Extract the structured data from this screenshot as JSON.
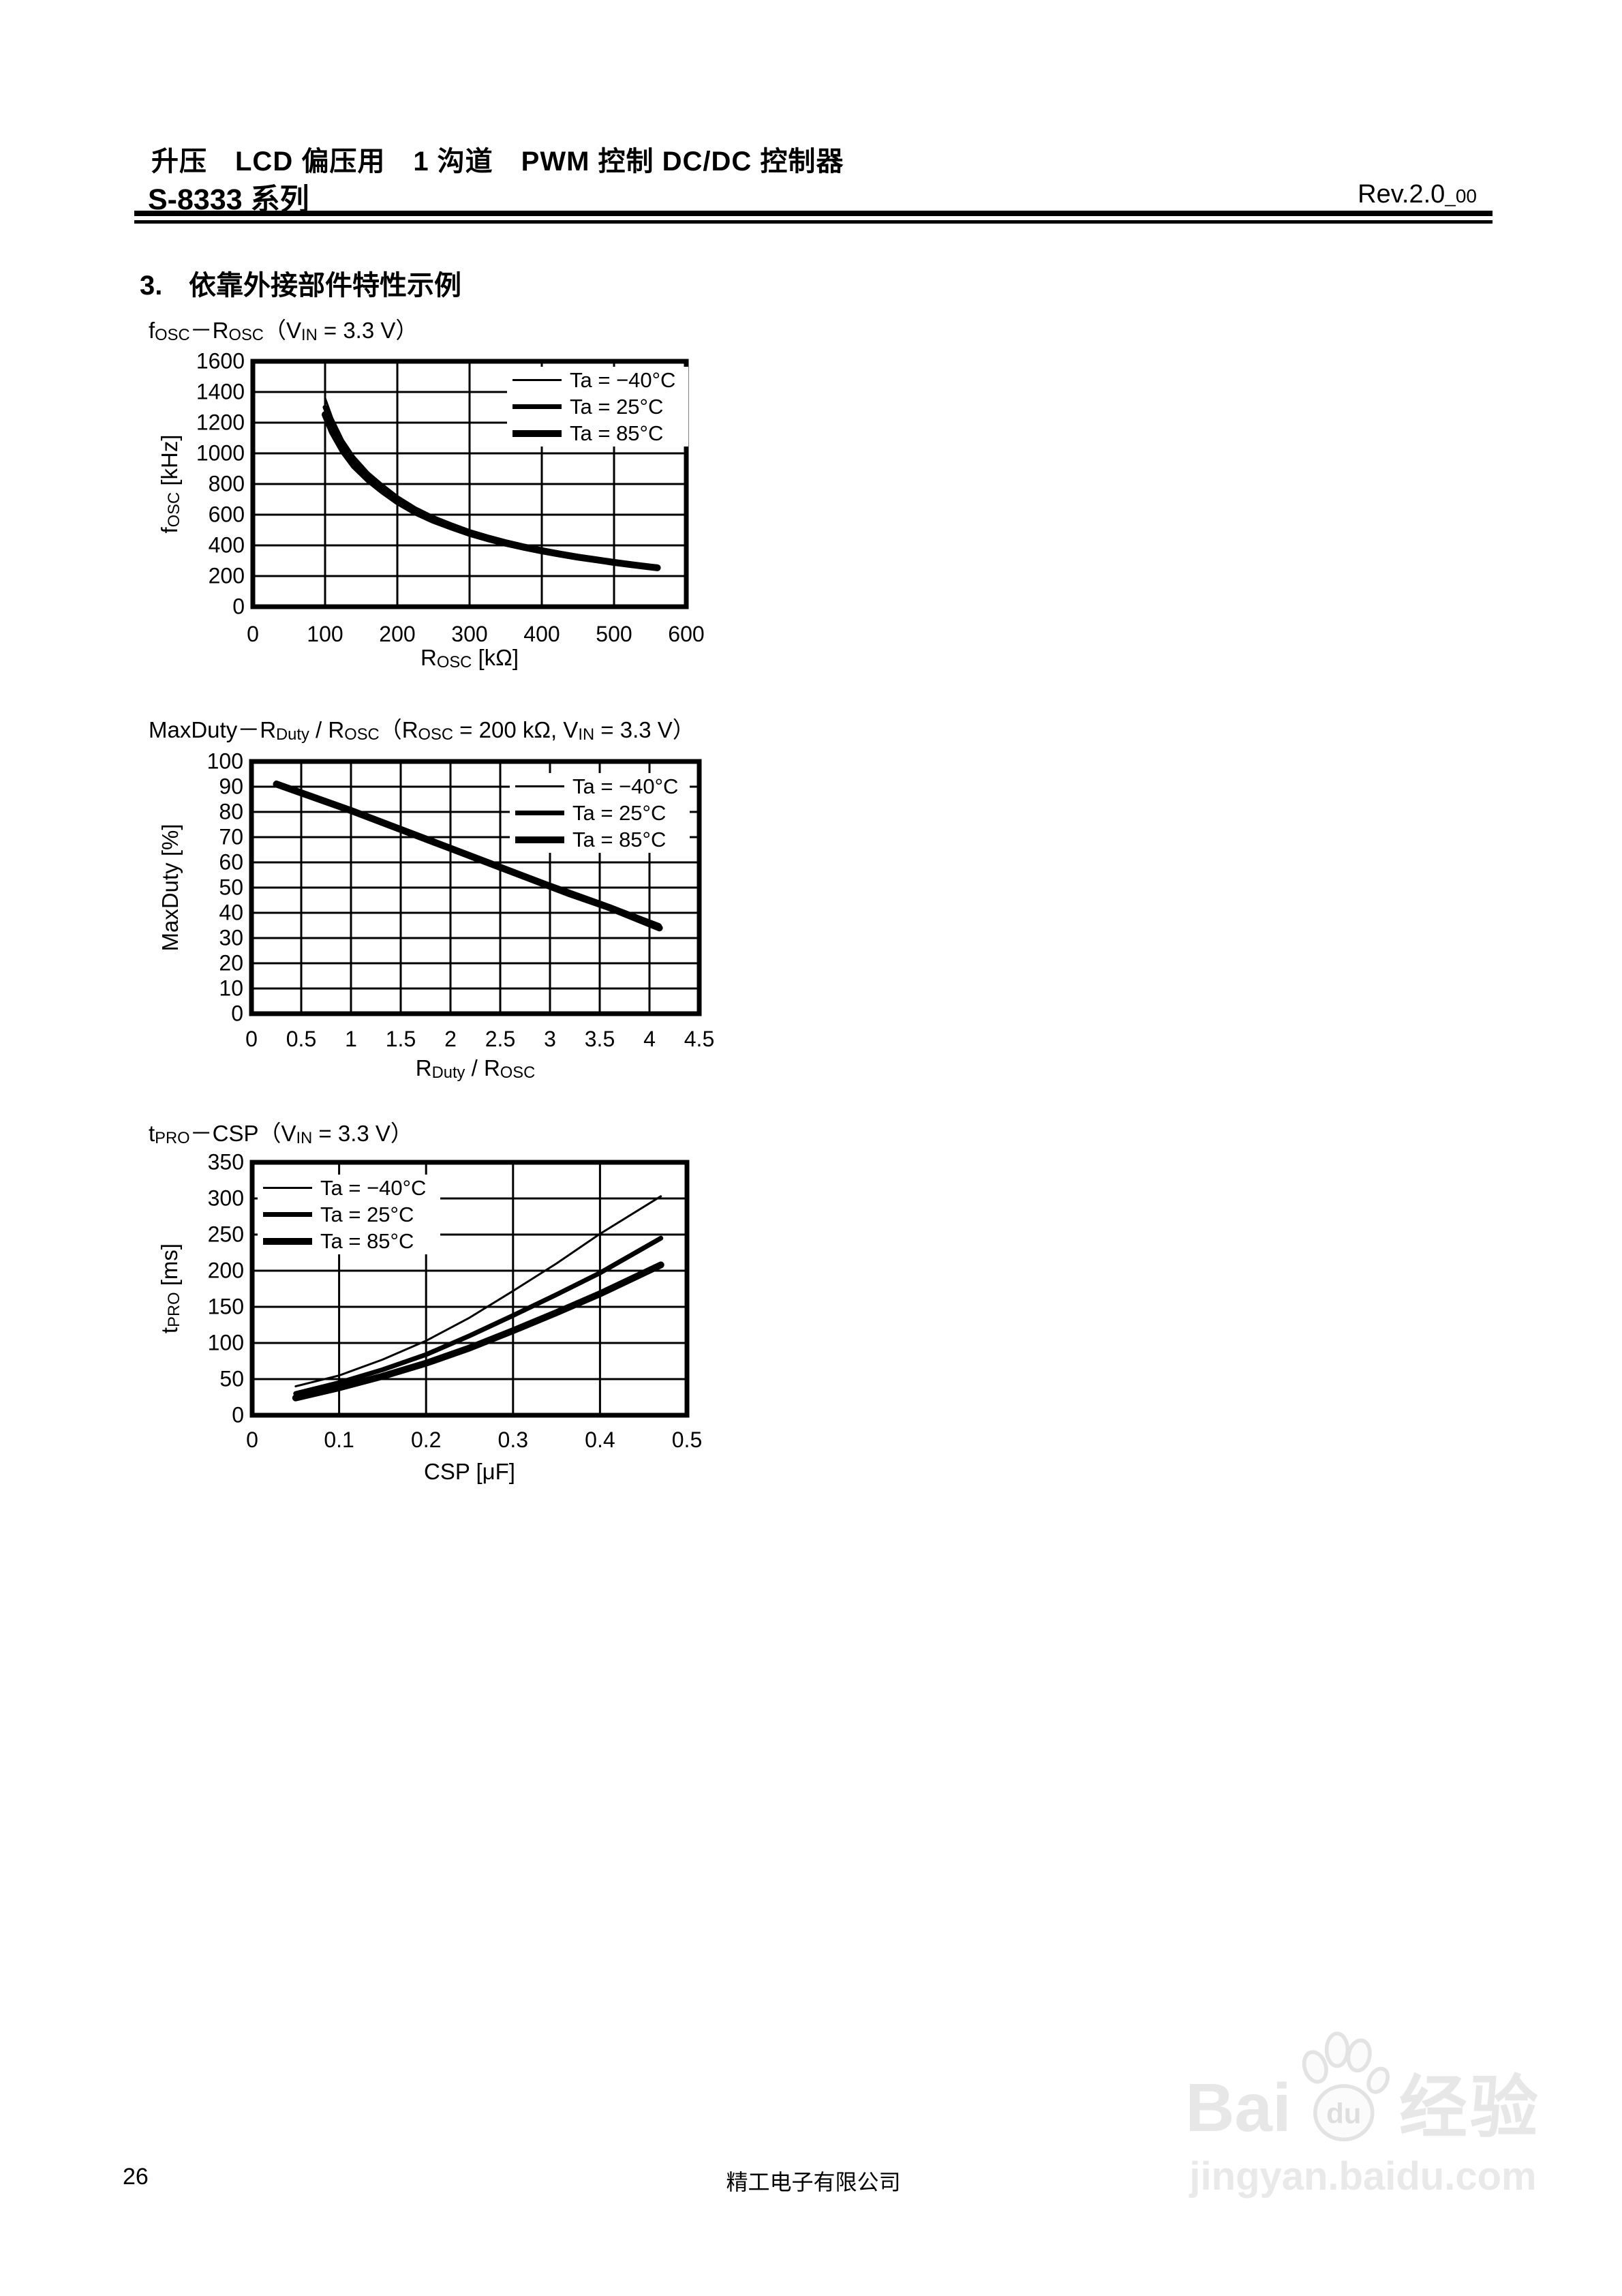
{
  "page": {
    "header": {
      "title_line": "升压　LCD 偏压用　1 沟道　PWM 控制 DC/DC 控制器",
      "series_name": "S-8333 系列",
      "revision": "Rev.2.0",
      "revision_sub": "_00"
    },
    "section": {
      "number": "3.",
      "title": "依靠外接部件特性示例"
    },
    "footer": {
      "page_number": "26",
      "company": "精工电子有限公司"
    },
    "watermark": {
      "bai": "Bai",
      "du": "du",
      "cn": "经验",
      "url": "jingyan.baidu.com",
      "color": "#e7e7e7"
    },
    "ink_color": "#000000"
  },
  "chart_data": [
    {
      "type": "line",
      "title": [
        {
          "t": "f"
        },
        {
          "t": "OSC",
          "sub": true
        },
        {
          "t": "－R"
        },
        {
          "t": "OSC",
          "sub": true
        },
        {
          "t": "（V"
        },
        {
          "t": "IN",
          "sub": true
        },
        {
          "t": " = 3.3 V）"
        }
      ],
      "ylabel": [
        {
          "t": "f"
        },
        {
          "t": "OSC",
          "sub": true
        },
        {
          "t": " [kHz]"
        }
      ],
      "xlabel": [
        {
          "t": "R"
        },
        {
          "t": "OSC",
          "sub": true
        },
        {
          "t": " [kΩ]"
        }
      ],
      "x_range": [
        0,
        600
      ],
      "y_range": [
        0,
        1600
      ],
      "x_ticks": [
        "0",
        "100",
        "200",
        "300",
        "400",
        "500",
        "600"
      ],
      "y_ticks": [
        "0",
        "200",
        "400",
        "600",
        "800",
        "1000",
        "1200",
        "1400",
        "1600"
      ],
      "grid": true,
      "legend_position": "top-right",
      "series": [
        {
          "name": "Ta = −40°C",
          "line_width": 3,
          "points": [
            [
              100,
              1360
            ],
            [
              110,
              1230
            ],
            [
              125,
              1085
            ],
            [
              140,
              980
            ],
            [
              160,
              875
            ],
            [
              180,
              795
            ],
            [
              200,
              722
            ],
            [
              225,
              648
            ],
            [
              250,
              590
            ],
            [
              275,
              543
            ],
            [
              300,
              500
            ],
            [
              325,
              465
            ],
            [
              350,
              433
            ],
            [
              375,
              405
            ],
            [
              400,
              380
            ],
            [
              425,
              358
            ],
            [
              450,
              337
            ],
            [
              475,
              318
            ],
            [
              500,
              300
            ],
            [
              525,
              284
            ],
            [
              550,
              269
            ],
            [
              560,
              263
            ]
          ]
        },
        {
          "name": "Ta = 25°C",
          "line_width": 7,
          "points": [
            [
              100,
              1300
            ],
            [
              110,
              1180
            ],
            [
              125,
              1048
            ],
            [
              140,
              948
            ],
            [
              160,
              850
            ],
            [
              180,
              773
            ],
            [
              200,
              703
            ],
            [
              225,
              632
            ],
            [
              250,
              576
            ],
            [
              275,
              530
            ],
            [
              300,
              489
            ],
            [
              325,
              454
            ],
            [
              350,
              423
            ],
            [
              375,
              396
            ],
            [
              400,
              372
            ],
            [
              425,
              350
            ],
            [
              450,
              330
            ],
            [
              475,
              312
            ],
            [
              500,
              294
            ],
            [
              525,
              279
            ],
            [
              550,
              264
            ],
            [
              560,
              258
            ]
          ]
        },
        {
          "name": "Ta = 85°C",
          "line_width": 10,
          "points": [
            [
              100,
              1253
            ],
            [
              110,
              1140
            ],
            [
              125,
              1015
            ],
            [
              140,
              920
            ],
            [
              160,
              828
            ],
            [
              180,
              753
            ],
            [
              200,
              686
            ],
            [
              225,
              617
            ],
            [
              250,
              563
            ],
            [
              275,
              519
            ],
            [
              300,
              478
            ],
            [
              325,
              444
            ],
            [
              350,
              414
            ],
            [
              375,
              388
            ],
            [
              400,
              364
            ],
            [
              425,
              343
            ],
            [
              450,
              323
            ],
            [
              475,
              306
            ],
            [
              500,
              289
            ],
            [
              525,
              274
            ],
            [
              550,
              259
            ],
            [
              560,
              254
            ]
          ]
        }
      ]
    },
    {
      "type": "line",
      "title": [
        {
          "t": "MaxDuty－R"
        },
        {
          "t": "Duty",
          "sub": true
        },
        {
          "t": " / R"
        },
        {
          "t": "OSC",
          "sub": true
        },
        {
          "t": "（R"
        },
        {
          "t": "OSC",
          "sub": true
        },
        {
          "t": " = 200 kΩ, V"
        },
        {
          "t": "IN",
          "sub": true
        },
        {
          "t": " = 3.3 V）"
        }
      ],
      "ylabel": [
        {
          "t": "MaxDuty [%]"
        }
      ],
      "xlabel": [
        {
          "t": "R"
        },
        {
          "t": "Duty",
          "sub": true
        },
        {
          "t": " / R"
        },
        {
          "t": "OSC",
          "sub": true
        }
      ],
      "x_range": [
        0,
        4.5
      ],
      "y_range": [
        0,
        100
      ],
      "x_ticks": [
        "0",
        "0.5",
        "1",
        "1.5",
        "2",
        "2.5",
        "3",
        "3.5",
        "4",
        "4.5"
      ],
      "y_ticks": [
        "0",
        "10",
        "20",
        "30",
        "40",
        "50",
        "60",
        "70",
        "80",
        "90",
        "100"
      ],
      "grid": true,
      "legend_position": "top-right",
      "series": [
        {
          "name": "Ta = −40°C",
          "line_width": 3,
          "points": [
            [
              0.25,
              92
            ],
            [
              1.0,
              81.5
            ],
            [
              2.0,
              66.5
            ],
            [
              3.0,
              51.5
            ],
            [
              3.6,
              43
            ],
            [
              4.1,
              35.5
            ]
          ]
        },
        {
          "name": "Ta = 25°C",
          "line_width": 7,
          "points": [
            [
              0.25,
              91.5
            ],
            [
              1.0,
              81
            ],
            [
              2.0,
              66
            ],
            [
              3.0,
              51
            ],
            [
              3.6,
              42.5
            ],
            [
              4.1,
              34.8
            ]
          ]
        },
        {
          "name": "Ta = 85°C",
          "line_width": 10,
          "points": [
            [
              0.25,
              91
            ],
            [
              1.0,
              80.5
            ],
            [
              2.0,
              65.5
            ],
            [
              3.0,
              50.5
            ],
            [
              3.2,
              47.5
            ],
            [
              3.6,
              42
            ],
            [
              4.1,
              34
            ]
          ]
        }
      ]
    },
    {
      "type": "line",
      "title": [
        {
          "t": "t"
        },
        {
          "t": "PRO",
          "sub": true
        },
        {
          "t": "－CSP（V"
        },
        {
          "t": "IN",
          "sub": true
        },
        {
          "t": " = 3.3 V）"
        }
      ],
      "ylabel": [
        {
          "t": "t"
        },
        {
          "t": "PRO",
          "sub": true
        },
        {
          "t": " [ms]"
        }
      ],
      "xlabel": [
        {
          "t": "CSP [μF]"
        }
      ],
      "x_range": [
        0,
        0.5
      ],
      "y_range": [
        0,
        350
      ],
      "x_ticks": [
        "0",
        "0.1",
        "0.2",
        "0.3",
        "0.4",
        "0.5"
      ],
      "y_ticks": [
        "0",
        "50",
        "100",
        "150",
        "200",
        "250",
        "300",
        "350"
      ],
      "grid": true,
      "legend_position": "top-left",
      "series": [
        {
          "name": "Ta = −40°C",
          "line_width": 3,
          "points": [
            [
              0.05,
              40
            ],
            [
              0.1,
              55
            ],
            [
              0.15,
              77
            ],
            [
              0.2,
              103
            ],
            [
              0.25,
              135
            ],
            [
              0.3,
              172
            ],
            [
              0.35,
              210
            ],
            [
              0.4,
              251
            ],
            [
              0.47,
              303
            ]
          ]
        },
        {
          "name": "Ta = 25°C",
          "line_width": 7,
          "points": [
            [
              0.05,
              30
            ],
            [
              0.1,
              45
            ],
            [
              0.15,
              63
            ],
            [
              0.2,
              84
            ],
            [
              0.25,
              110
            ],
            [
              0.3,
              138
            ],
            [
              0.35,
              167
            ],
            [
              0.4,
              197
            ],
            [
              0.47,
              245
            ]
          ]
        },
        {
          "name": "Ta = 85°C",
          "line_width": 10,
          "points": [
            [
              0.05,
              24
            ],
            [
              0.1,
              38
            ],
            [
              0.15,
              54
            ],
            [
              0.2,
              72
            ],
            [
              0.25,
              93
            ],
            [
              0.3,
              117
            ],
            [
              0.35,
              142
            ],
            [
              0.4,
              168
            ],
            [
              0.47,
              208
            ]
          ]
        }
      ]
    }
  ]
}
